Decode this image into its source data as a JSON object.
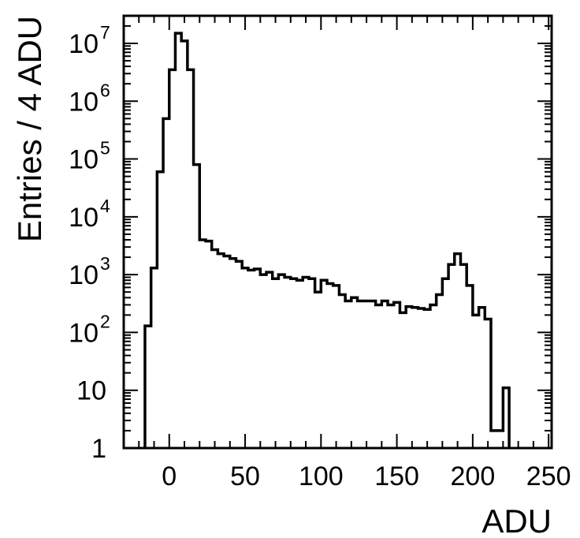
{
  "chart_data": {
    "type": "histogram",
    "xlabel": "ADU",
    "ylabel": "Entries / 4 ADU",
    "xlim": [
      -30,
      252
    ],
    "ylim": [
      1,
      30000000
    ],
    "yscale": "log",
    "grid": false,
    "colors": {
      "line": "#000000",
      "frame": "#000000",
      "background": "#ffffff"
    },
    "x_ticks": [
      {
        "value": 0,
        "label": "0"
      },
      {
        "value": 50,
        "label": "50"
      },
      {
        "value": 100,
        "label": "100"
      },
      {
        "value": 150,
        "label": "150"
      },
      {
        "value": 200,
        "label": "200"
      },
      {
        "value": 250,
        "label": "250"
      }
    ],
    "y_ticks": [
      {
        "value": 1,
        "base": "1",
        "exp": ""
      },
      {
        "value": 10,
        "base": "10",
        "exp": ""
      },
      {
        "value": 100,
        "base": "10",
        "exp": "2"
      },
      {
        "value": 1000,
        "base": "10",
        "exp": "3"
      },
      {
        "value": 10000,
        "base": "10",
        "exp": "4"
      },
      {
        "value": 100000,
        "base": "10",
        "exp": "5"
      },
      {
        "value": 1000000,
        "base": "10",
        "exp": "6"
      },
      {
        "value": 10000000,
        "base": "10",
        "exp": "7"
      }
    ],
    "bin_width": 4,
    "bin_edges": [
      -16,
      -12,
      -8,
      -4,
      0,
      4,
      8,
      12,
      16,
      20,
      24,
      28,
      32,
      36,
      40,
      44,
      48,
      52,
      56,
      60,
      64,
      68,
      72,
      76,
      80,
      84,
      88,
      92,
      96,
      100,
      104,
      108,
      112,
      116,
      120,
      124,
      128,
      132,
      136,
      140,
      144,
      148,
      152,
      156,
      160,
      164,
      168,
      172,
      176,
      180,
      184,
      188,
      192,
      196,
      200,
      204,
      208,
      212,
      216,
      220,
      224
    ],
    "counts": [
      130,
      1300,
      60000,
      500000,
      3500000,
      15000000,
      11000000,
      3500000,
      80000,
      4000,
      3800,
      2700,
      2300,
      2100,
      1900,
      1700,
      1300,
      1200,
      1250,
      1000,
      1100,
      850,
      1000,
      900,
      850,
      800,
      900,
      850,
      500,
      800,
      700,
      650,
      450,
      350,
      400,
      350,
      350,
      350,
      300,
      350,
      300,
      330,
      220,
      280,
      270,
      260,
      250,
      300,
      450,
      850,
      1500,
      2300,
      1500,
      650,
      200,
      270,
      170,
      2,
      2,
      11
    ]
  }
}
